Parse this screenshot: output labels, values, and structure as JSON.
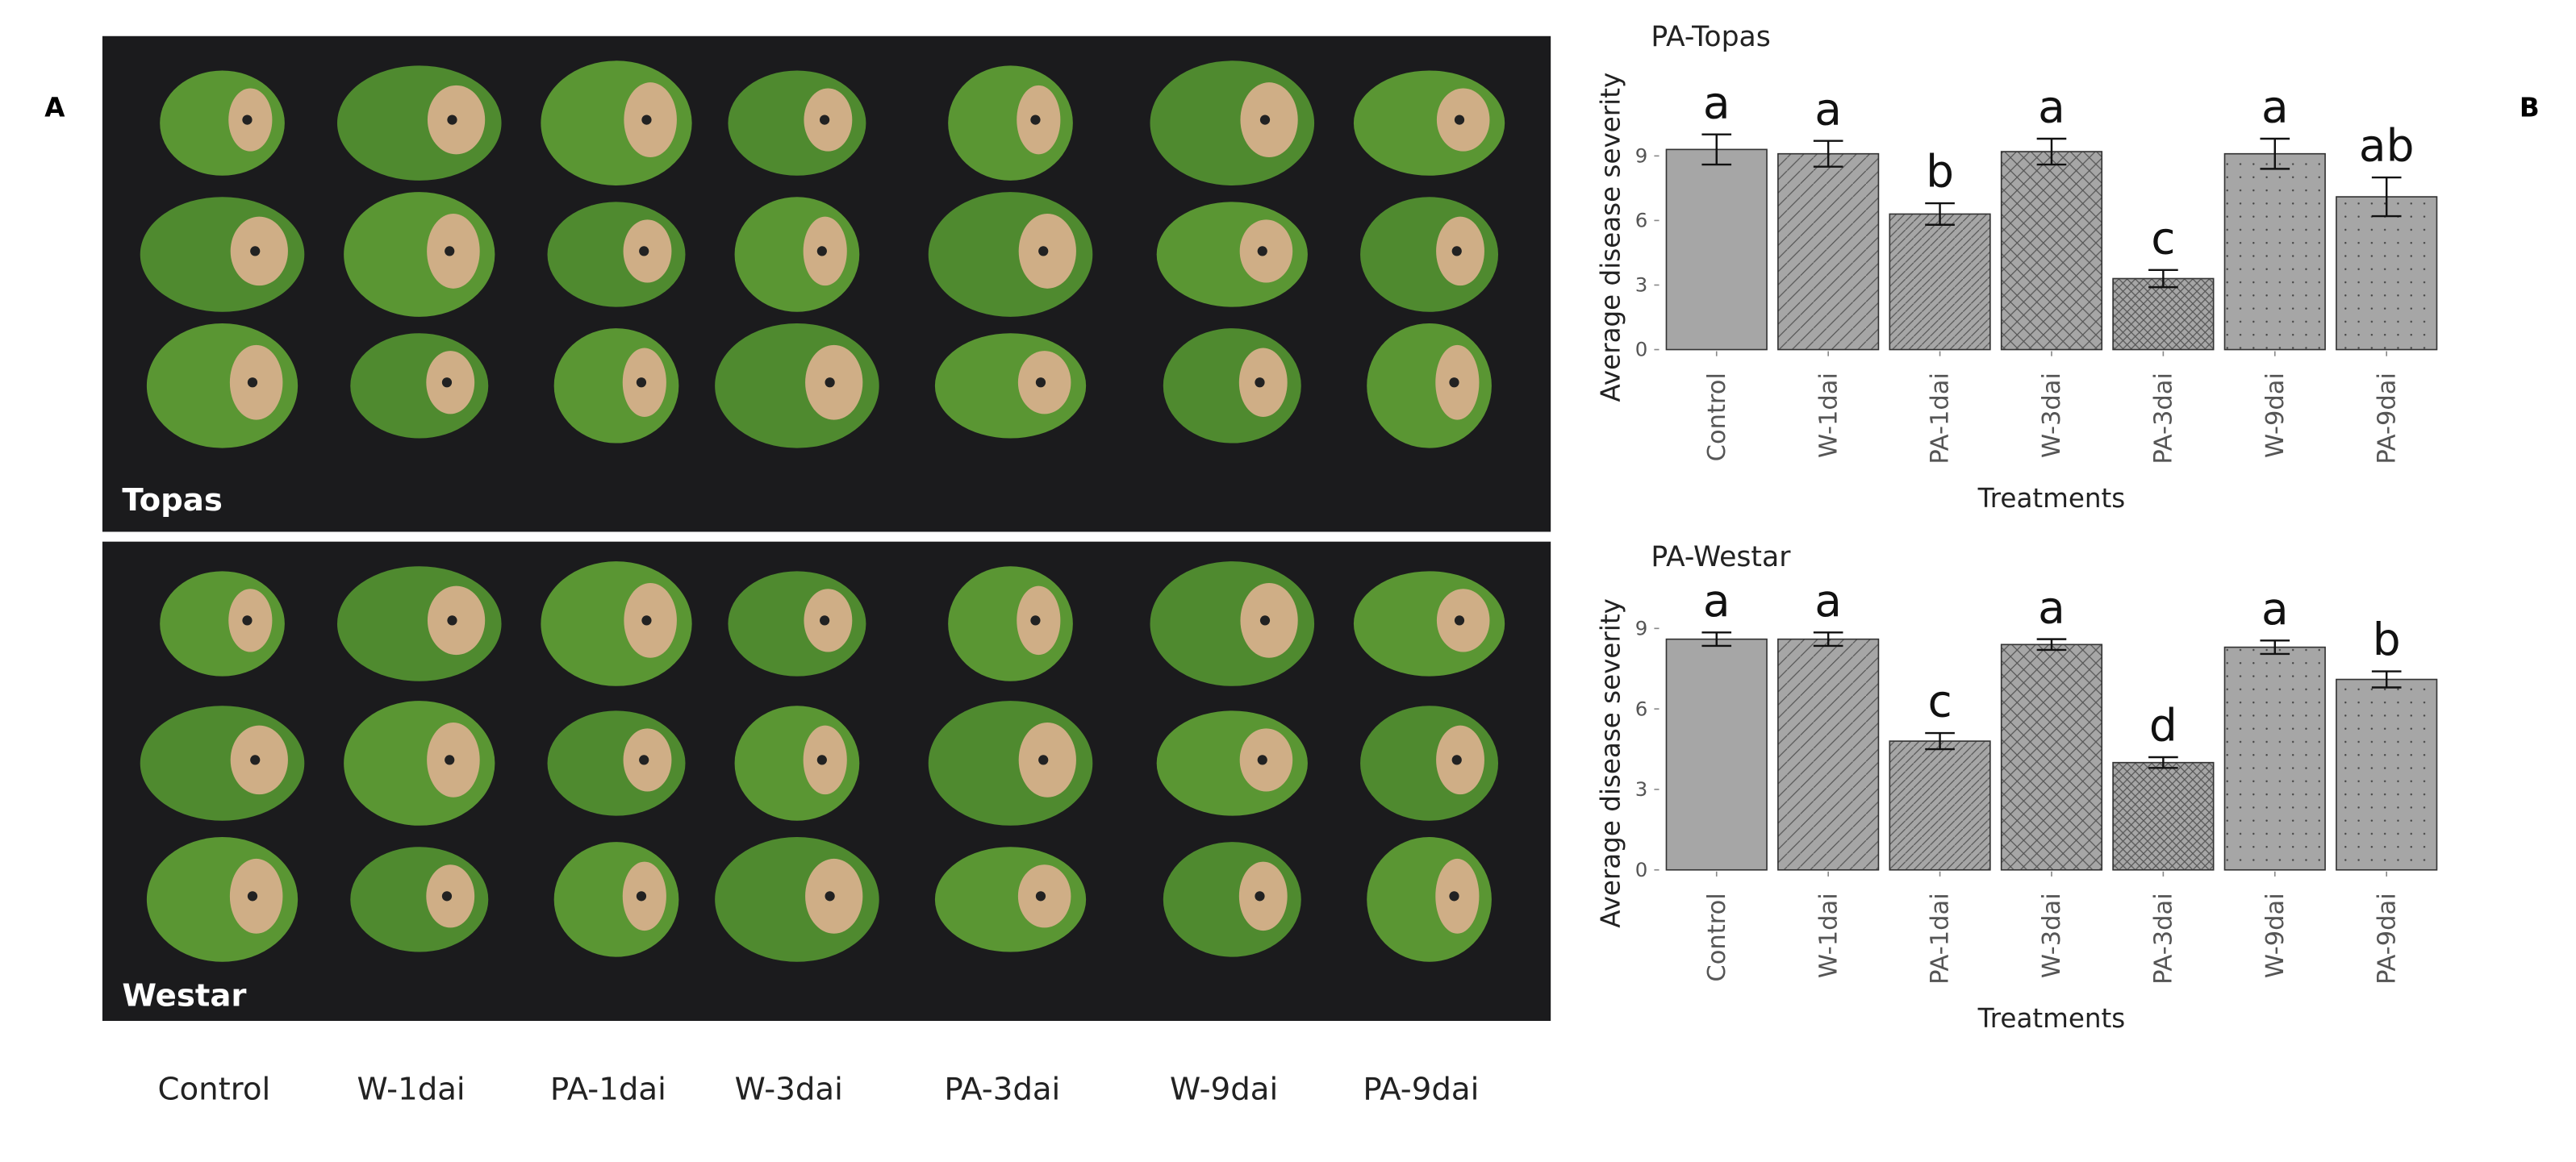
{
  "panel_a": {
    "label": "A",
    "photo_labels": [
      "Topas",
      "Westar"
    ],
    "treatments": [
      "Control",
      "W-1dai",
      "PA-1dai",
      "W-3dai",
      "PA-3dai",
      "W-9dai",
      "PA-9dai"
    ]
  },
  "panel_b": {
    "label": "B"
  },
  "chart_data": [
    {
      "type": "bar",
      "title": "PA-Topas",
      "y_label": "Average disease severity",
      "x_label": "Treatments",
      "categories": [
        "Control",
        "W-1dai",
        "PA-1dai",
        "W-3dai",
        "PA-3dai",
        "W-9dai",
        "PA-9dai"
      ],
      "values": [
        9.3,
        9.1,
        6.3,
        9.2,
        3.3,
        9.1,
        7.1
      ],
      "errors": [
        0.7,
        0.6,
        0.5,
        0.6,
        0.4,
        0.7,
        0.9
      ],
      "annotations": [
        "a",
        "a",
        "b",
        "a",
        "c",
        "a",
        "ab"
      ],
      "color": "#a6a6a6",
      "patterns": [
        "none",
        "diag",
        "diag-dense",
        "cross",
        "cross-dense",
        "dots",
        "dots"
      ],
      "ylim": [
        0,
        13.5
      ],
      "yticks": [
        0,
        3,
        6,
        9
      ]
    },
    {
      "type": "bar",
      "title": "PA-Westar",
      "y_label": "Average disease severity",
      "x_label": "Treatments",
      "categories": [
        "Control",
        "W-1dai",
        "PA-1dai",
        "W-3dai",
        "PA-3dai",
        "W-9dai",
        "PA-9dai"
      ],
      "values": [
        8.6,
        8.6,
        4.8,
        8.4,
        4.0,
        8.3,
        7.1
      ],
      "errors": [
        0.25,
        0.25,
        0.3,
        0.2,
        0.2,
        0.25,
        0.3
      ],
      "annotations": [
        "a",
        "a",
        "c",
        "a",
        "d",
        "a",
        "b"
      ],
      "color": "#a6a6a6",
      "patterns": [
        "none",
        "diag",
        "diag-dense",
        "cross",
        "cross-dense",
        "dots",
        "dots"
      ],
      "ylim": [
        0,
        10.4
      ],
      "yticks": [
        0,
        3,
        6,
        9
      ]
    }
  ]
}
